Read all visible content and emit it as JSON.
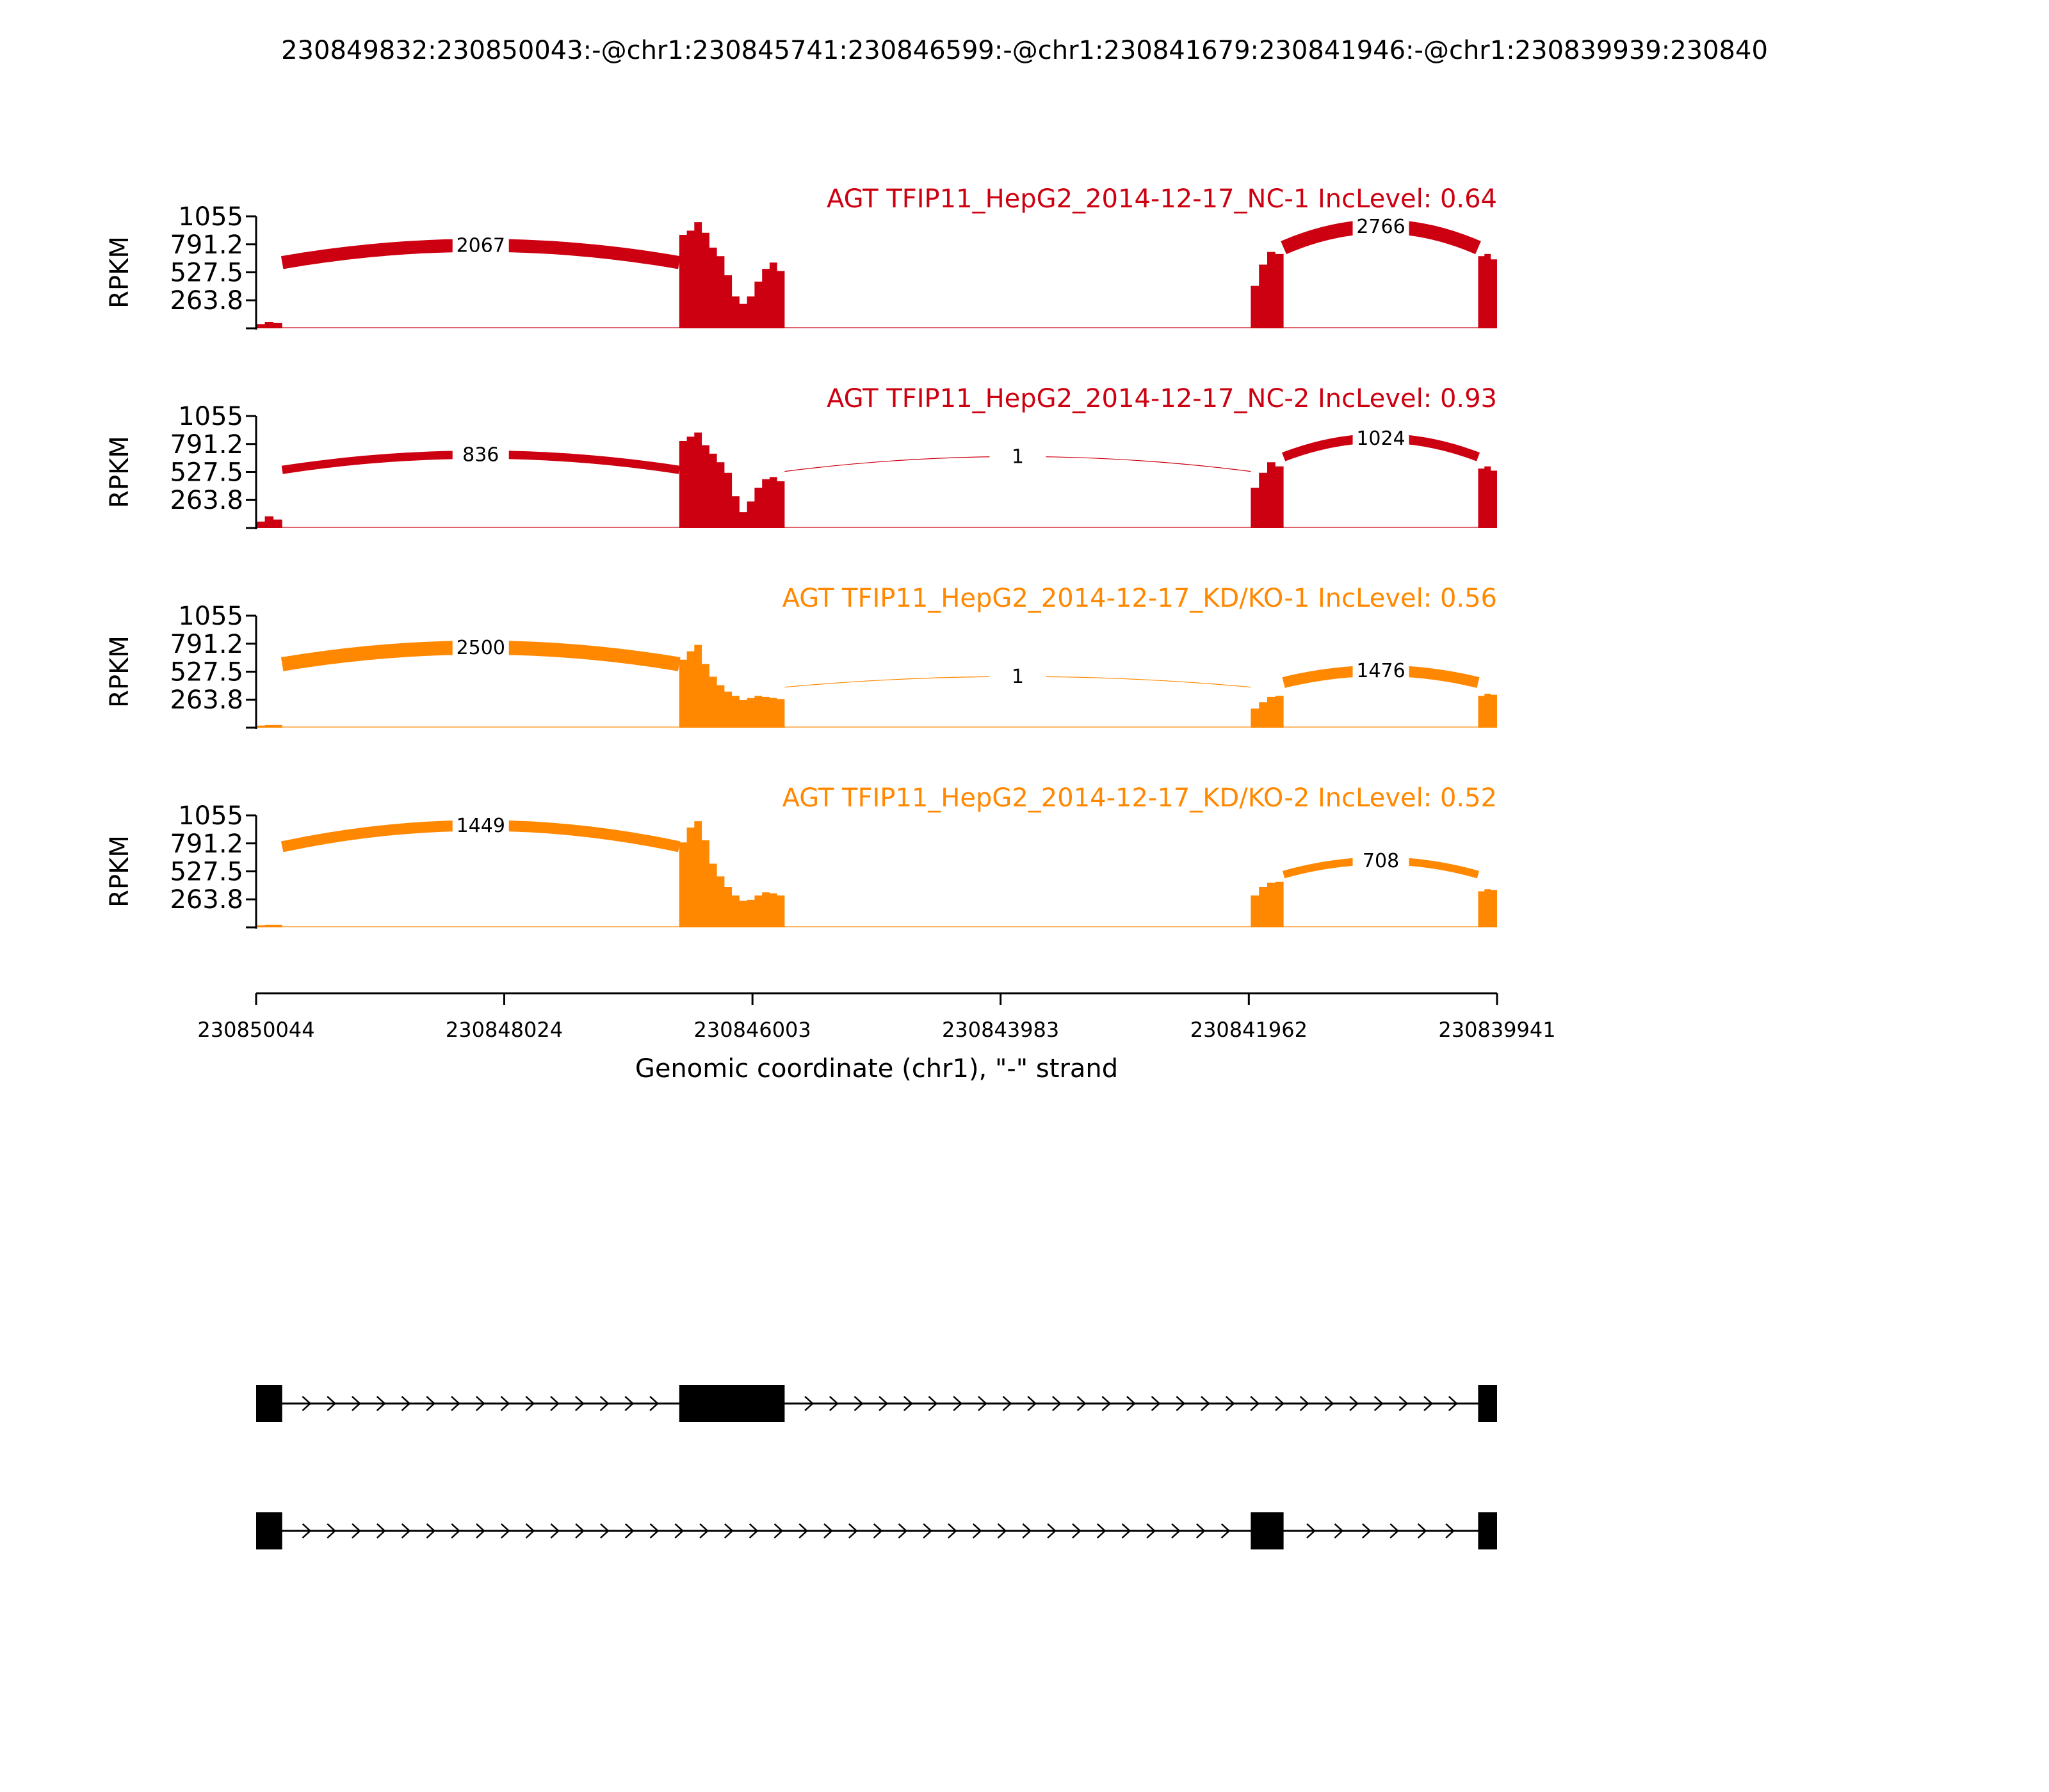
{
  "title": "230849832:230850043:-@chr1:230845741:230846599:-@chr1:230841679:230841946:-@chr1:230839939:230840",
  "chart_data": {
    "type": "area",
    "kind": "sashimi-plot",
    "chromosome": "chr1",
    "strand": "-",
    "xlabel": "Genomic coordinate (chr1), \"-\" strand",
    "ylabel": "RPKM",
    "xlim": [
      230850044,
      230839941
    ],
    "x_reversed": true,
    "xticks": [
      230850044,
      230848024,
      230846003,
      230843983,
      230841962,
      230839941
    ],
    "ylim": [
      0,
      1055
    ],
    "yticks": [
      263.8,
      527.5,
      791.2,
      1055
    ],
    "grid": false,
    "legend": "none",
    "exons": [
      {
        "start": 230850044,
        "end": 230849832
      },
      {
        "start": 230846599,
        "end": 230845741
      },
      {
        "start": 230841946,
        "end": 230841679
      },
      {
        "start": 230840095,
        "end": 230839941
      }
    ],
    "series": [
      {
        "name": "AGT TFIP11_HepG2_2014-12-17_NC-1",
        "inc_level": "0.64",
        "color": "#cc0011",
        "coverage": [
          {
            "start": 230850044,
            "end": 230849832,
            "levels": [
              40,
              60,
              50
            ]
          },
          {
            "start": 230846599,
            "end": 230845741,
            "levels": [
              880,
              920,
              1000,
              900,
              760,
              680,
              500,
              300,
              230,
              300,
              440,
              560,
              620,
              540
            ]
          },
          {
            "start": 230841946,
            "end": 230841679,
            "levels": [
              400,
              600,
              720,
              700
            ]
          },
          {
            "start": 230840095,
            "end": 230839941,
            "levels": [
              680,
              700,
              650
            ]
          }
        ],
        "junctions": [
          {
            "label": "2067",
            "from": 230849832,
            "to": 230846599,
            "peak": 860,
            "side": "above"
          },
          {
            "label": "2766",
            "from": 230841679,
            "to": 230840095,
            "peak": 1055,
            "side": "above"
          }
        ]
      },
      {
        "name": "AGT TFIP11_HepG2_2014-12-17_NC-2",
        "inc_level": "0.93",
        "color": "#cc0011",
        "coverage": [
          {
            "start": 230850044,
            "end": 230849832,
            "levels": [
              60,
              110,
              80
            ]
          },
          {
            "start": 230846599,
            "end": 230845741,
            "levels": [
              820,
              860,
              900,
              780,
              700,
              620,
              520,
              300,
              150,
              250,
              380,
              460,
              480,
              440
            ]
          },
          {
            "start": 230841946,
            "end": 230841679,
            "levels": [
              380,
              520,
              620,
              580
            ]
          },
          {
            "start": 230840095,
            "end": 230839941,
            "levels": [
              560,
              580,
              540
            ]
          }
        ],
        "junctions": [
          {
            "label": "836",
            "from": 230849832,
            "to": 230846599,
            "peak": 760,
            "side": "above"
          },
          {
            "label": "1",
            "from": 230845741,
            "to": 230841946,
            "peak": 740,
            "side": "above"
          },
          {
            "label": "1024",
            "from": 230841679,
            "to": 230840095,
            "peak": 930,
            "side": "above"
          }
        ]
      },
      {
        "name": "AGT TFIP11_HepG2_2014-12-17_KD/KO-1",
        "inc_level": "0.56",
        "color": "#ff8800",
        "coverage": [
          {
            "start": 230850044,
            "end": 230849832,
            "levels": [
              20,
              25,
              25
            ]
          },
          {
            "start": 230846599,
            "end": 230845741,
            "levels": [
              640,
              720,
              780,
              600,
              480,
              400,
              340,
              300,
              260,
              280,
              300,
              290,
              280,
              270
            ]
          },
          {
            "start": 230841946,
            "end": 230841679,
            "levels": [
              180,
              240,
              290,
              300
            ]
          },
          {
            "start": 230840095,
            "end": 230839941,
            "levels": [
              300,
              320,
              310
            ]
          }
        ],
        "junctions": [
          {
            "label": "2500",
            "from": 230849832,
            "to": 230846599,
            "peak": 830,
            "side": "above"
          },
          {
            "label": "1",
            "from": 230845741,
            "to": 230841946,
            "peak": 530,
            "side": "above"
          },
          {
            "label": "1476",
            "from": 230841679,
            "to": 230840095,
            "peak": 590,
            "side": "above"
          }
        ]
      },
      {
        "name": "AGT TFIP11_HepG2_2014-12-17_KD/KO-2",
        "inc_level": "0.52",
        "color": "#ff8800",
        "coverage": [
          {
            "start": 230850044,
            "end": 230849832,
            "levels": [
              20,
              25,
              25
            ]
          },
          {
            "start": 230846599,
            "end": 230845741,
            "levels": [
              800,
              940,
              1000,
              820,
              600,
              480,
              380,
              300,
              250,
              260,
              300,
              330,
              320,
              300
            ]
          },
          {
            "start": 230841946,
            "end": 230841679,
            "levels": [
              300,
              380,
              420,
              430
            ]
          },
          {
            "start": 230840095,
            "end": 230839941,
            "levels": [
              340,
              360,
              350
            ]
          }
        ],
        "junctions": [
          {
            "label": "1449",
            "from": 230849832,
            "to": 230846599,
            "peak": 1055,
            "side": "above"
          },
          {
            "label": "708",
            "from": 230841679,
            "to": 230840095,
            "peak": 690,
            "side": "above"
          }
        ]
      }
    ],
    "transcripts": [
      {
        "exons": [
          [
            230850044,
            230849832
          ],
          [
            230846599,
            230845741
          ],
          [
            230840095,
            230839941
          ]
        ]
      },
      {
        "exons": [
          [
            230850044,
            230849832
          ],
          [
            230841946,
            230841679
          ],
          [
            230840095,
            230839941
          ]
        ]
      }
    ]
  }
}
